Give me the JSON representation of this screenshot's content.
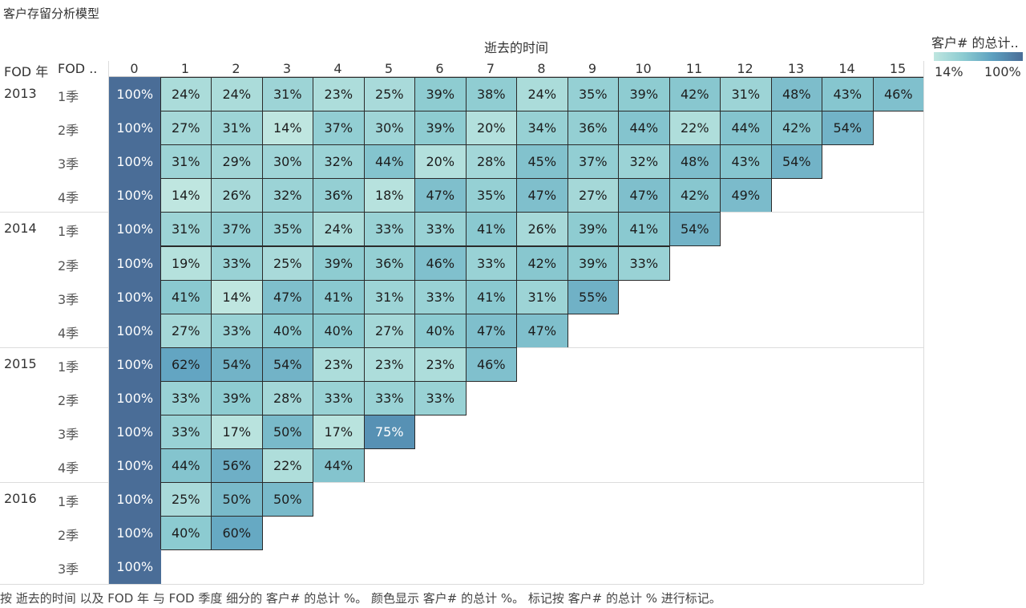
{
  "title": "客户存留分析模型",
  "column_title": "逝去的时间",
  "row_headers": [
    "FOD 年",
    "FOD .."
  ],
  "legend": {
    "title": "客户# 的总计..",
    "min_label": "14%",
    "max_label": "100%"
  },
  "footer": "按 逝去的时间 以及 FOD 年 与 FOD 季度 细分的 客户# 的总计 %。  颜色显示 客户# 的总计 %。  标记按 客户# 的总计 % 进行标记。",
  "colors": {
    "low": "#bfe6e0",
    "mid": "#8ccbd1",
    "high": "#5c9fbf",
    "max": "#4a6d97",
    "border": "#2a2a2a"
  },
  "chart_data": {
    "type": "heatmap",
    "x": [
      "0",
      "1",
      "2",
      "3",
      "4",
      "5",
      "6",
      "7",
      "8",
      "9",
      "10",
      "11",
      "12",
      "13",
      "14",
      "15"
    ],
    "xlabel": "逝去的时间",
    "years": [
      {
        "year": "2013",
        "quarters": [
          {
            "q": "1季",
            "values": [
              100,
              24,
              24,
              31,
              23,
              25,
              39,
              38,
              24,
              35,
              39,
              42,
              31,
              48,
              43,
              46
            ]
          },
          {
            "q": "2季",
            "values": [
              100,
              27,
              31,
              14,
              37,
              30,
              39,
              20,
              34,
              36,
              44,
              22,
              44,
              42,
              54
            ]
          },
          {
            "q": "3季",
            "values": [
              100,
              31,
              29,
              30,
              32,
              44,
              20,
              28,
              45,
              37,
              32,
              48,
              43,
              54
            ]
          },
          {
            "q": "4季",
            "values": [
              100,
              14,
              26,
              32,
              36,
              18,
              47,
              35,
              47,
              27,
              47,
              42,
              49
            ]
          }
        ]
      },
      {
        "year": "2014",
        "quarters": [
          {
            "q": "1季",
            "values": [
              100,
              31,
              37,
              35,
              24,
              33,
              33,
              41,
              26,
              39,
              41,
              54
            ]
          },
          {
            "q": "2季",
            "values": [
              100,
              19,
              33,
              25,
              39,
              36,
              46,
              33,
              42,
              39,
              33
            ]
          },
          {
            "q": "3季",
            "values": [
              100,
              41,
              14,
              47,
              41,
              31,
              33,
              41,
              31,
              55
            ]
          },
          {
            "q": "4季",
            "values": [
              100,
              27,
              33,
              40,
              40,
              27,
              40,
              47,
              47
            ]
          }
        ]
      },
      {
        "year": "2015",
        "quarters": [
          {
            "q": "1季",
            "values": [
              100,
              62,
              54,
              54,
              23,
              23,
              23,
              46
            ]
          },
          {
            "q": "2季",
            "values": [
              100,
              33,
              39,
              28,
              33,
              33,
              33
            ]
          },
          {
            "q": "3季",
            "values": [
              100,
              33,
              17,
              50,
              17,
              75
            ]
          },
          {
            "q": "4季",
            "values": [
              100,
              44,
              56,
              22,
              44
            ]
          }
        ]
      },
      {
        "year": "2016",
        "quarters": [
          {
            "q": "1季",
            "values": [
              100,
              25,
              50,
              50
            ]
          },
          {
            "q": "2季",
            "values": [
              100,
              40,
              60
            ]
          },
          {
            "q": "3季",
            "values": [
              100
            ]
          }
        ]
      }
    ],
    "value_suffix": "%",
    "range": [
      14,
      100
    ]
  }
}
